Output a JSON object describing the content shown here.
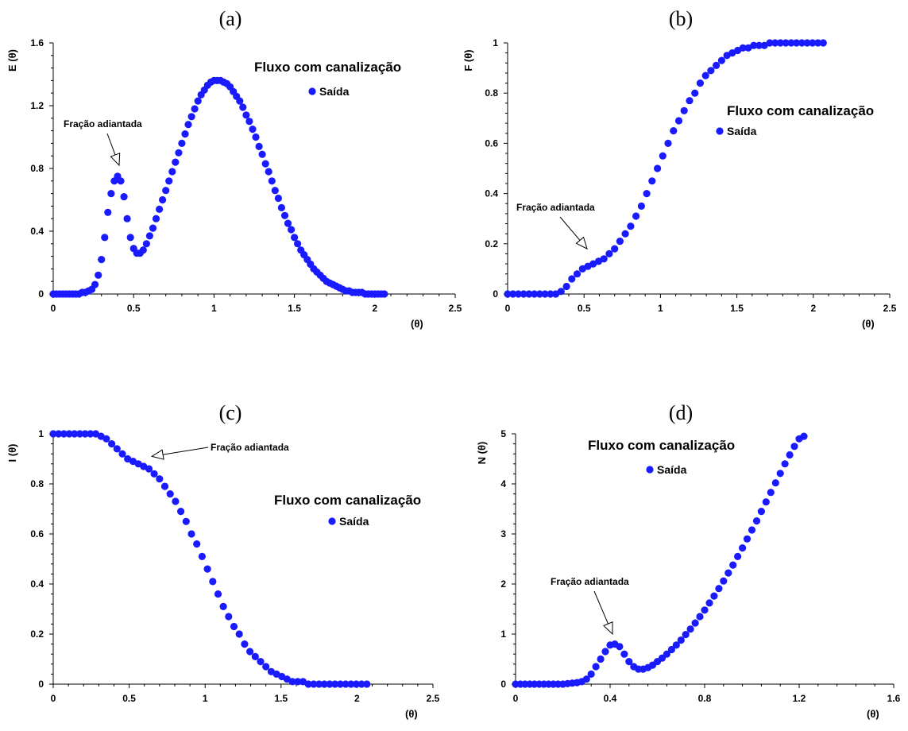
{
  "chart_data": [
    {
      "type": "scatter",
      "panel_label": "(a)",
      "ylabel": "E (θ)",
      "xlabel": "(θ)",
      "xlim": [
        0,
        2.5
      ],
      "ylim": [
        0,
        1.6
      ],
      "xticks": [
        0,
        0.5,
        1,
        1.5,
        2,
        2.5
      ],
      "yticks": [
        0,
        0.4,
        0.8,
        1.2,
        1.6
      ],
      "xtick_labels": [
        "0",
        "0.5",
        "1",
        "1.5",
        "2",
        "2.5"
      ],
      "ytick_labels": [
        "0",
        "0.4",
        "0.8",
        "1.2",
        "1.6"
      ],
      "title": "Fluxo com canalização",
      "legend": "Saída",
      "annotation": "Fração adiantada",
      "annotation_target": [
        0.41,
        0.82
      ],
      "color": "#1a1aff",
      "series": [
        {
          "name": "Saída",
          "x": [
            0.0,
            0.02,
            0.04,
            0.06,
            0.08,
            0.1,
            0.12,
            0.14,
            0.16,
            0.18,
            0.2,
            0.22,
            0.24,
            0.26,
            0.28,
            0.3,
            0.32,
            0.34,
            0.36,
            0.38,
            0.4,
            0.42,
            0.44,
            0.46,
            0.48,
            0.5,
            0.52,
            0.54,
            0.56,
            0.58,
            0.6,
            0.62,
            0.64,
            0.66,
            0.68,
            0.7,
            0.72,
            0.74,
            0.76,
            0.78,
            0.8,
            0.82,
            0.84,
            0.86,
            0.88,
            0.9,
            0.92,
            0.94,
            0.96,
            0.98,
            1.0,
            1.02,
            1.04,
            1.06,
            1.08,
            1.1,
            1.12,
            1.14,
            1.16,
            1.18,
            1.2,
            1.22,
            1.24,
            1.26,
            1.28,
            1.3,
            1.32,
            1.34,
            1.36,
            1.38,
            1.4,
            1.42,
            1.44,
            1.46,
            1.48,
            1.5,
            1.52,
            1.54,
            1.56,
            1.58,
            1.6,
            1.62,
            1.64,
            1.66,
            1.68,
            1.7,
            1.72,
            1.74,
            1.76,
            1.78,
            1.8,
            1.82,
            1.84,
            1.86,
            1.88,
            1.9,
            1.92,
            1.94,
            1.96,
            1.98,
            2.0,
            2.02,
            2.04,
            2.06
          ],
          "y": [
            0.0,
            0.0,
            0.0,
            0.0,
            0.0,
            0.0,
            0.0,
            0.0,
            0.0,
            0.01,
            0.01,
            0.02,
            0.03,
            0.06,
            0.12,
            0.22,
            0.36,
            0.52,
            0.64,
            0.72,
            0.75,
            0.72,
            0.62,
            0.48,
            0.36,
            0.29,
            0.26,
            0.26,
            0.28,
            0.32,
            0.37,
            0.42,
            0.48,
            0.54,
            0.6,
            0.66,
            0.72,
            0.78,
            0.84,
            0.9,
            0.96,
            1.02,
            1.08,
            1.13,
            1.18,
            1.23,
            1.27,
            1.3,
            1.33,
            1.35,
            1.36,
            1.36,
            1.36,
            1.35,
            1.34,
            1.32,
            1.29,
            1.26,
            1.23,
            1.19,
            1.14,
            1.1,
            1.05,
            1.0,
            0.94,
            0.89,
            0.83,
            0.78,
            0.72,
            0.66,
            0.61,
            0.55,
            0.5,
            0.45,
            0.41,
            0.36,
            0.32,
            0.28,
            0.25,
            0.22,
            0.19,
            0.16,
            0.14,
            0.12,
            0.1,
            0.08,
            0.07,
            0.06,
            0.05,
            0.04,
            0.03,
            0.02,
            0.02,
            0.01,
            0.01,
            0.01,
            0.01,
            0.0,
            0.0,
            0.0,
            0.0,
            0.0,
            0.0,
            0.0
          ]
        }
      ]
    },
    {
      "type": "scatter",
      "panel_label": "(b)",
      "ylabel": "F (θ)",
      "xlabel": "(θ)",
      "xlim": [
        0,
        2.5
      ],
      "ylim": [
        0,
        1
      ],
      "xticks": [
        0,
        0.5,
        1,
        1.5,
        2,
        2.5
      ],
      "yticks": [
        0,
        0.2,
        0.4,
        0.6,
        0.8,
        1
      ],
      "xtick_labels": [
        "0",
        "0.5",
        "1",
        "1.5",
        "2",
        "2.5"
      ],
      "ytick_labels": [
        "0",
        "0.2",
        "0.4",
        "0.6",
        "0.8",
        "1"
      ],
      "title": "Fluxo com canalização",
      "legend": "Saída",
      "annotation": "Fração adiantada",
      "annotation_target": [
        0.52,
        0.18
      ],
      "color": "#1a1aff",
      "series": [
        {
          "name": "Saída",
          "x": [
            0.0,
            0.035,
            0.07,
            0.105,
            0.14,
            0.175,
            0.21,
            0.245,
            0.28,
            0.315,
            0.35,
            0.385,
            0.42,
            0.455,
            0.49,
            0.525,
            0.56,
            0.595,
            0.63,
            0.665,
            0.7,
            0.735,
            0.77,
            0.805,
            0.84,
            0.875,
            0.91,
            0.945,
            0.98,
            1.015,
            1.05,
            1.085,
            1.12,
            1.155,
            1.19,
            1.225,
            1.26,
            1.295,
            1.33,
            1.365,
            1.4,
            1.435,
            1.47,
            1.505,
            1.54,
            1.575,
            1.61,
            1.645,
            1.68,
            1.715,
            1.75,
            1.785,
            1.82,
            1.855,
            1.89,
            1.925,
            1.96,
            1.995,
            2.03,
            2.065
          ],
          "y": [
            0.0,
            0.0,
            0.0,
            0.0,
            0.0,
            0.0,
            0.0,
            0.0,
            0.0,
            0.0,
            0.01,
            0.03,
            0.06,
            0.08,
            0.1,
            0.11,
            0.12,
            0.13,
            0.14,
            0.16,
            0.18,
            0.21,
            0.24,
            0.27,
            0.31,
            0.35,
            0.4,
            0.45,
            0.5,
            0.55,
            0.6,
            0.65,
            0.69,
            0.73,
            0.77,
            0.8,
            0.84,
            0.87,
            0.89,
            0.91,
            0.93,
            0.95,
            0.96,
            0.97,
            0.98,
            0.98,
            0.99,
            0.99,
            0.99,
            1.0,
            1.0,
            1.0,
            1.0,
            1.0,
            1.0,
            1.0,
            1.0,
            1.0,
            1.0,
            1.0
          ]
        }
      ]
    },
    {
      "type": "scatter",
      "panel_label": "(c)",
      "ylabel": "I (θ)",
      "xlabel": "(θ)",
      "xlim": [
        0,
        2.5
      ],
      "ylim": [
        0,
        1
      ],
      "xticks": [
        0,
        0.5,
        1,
        1.5,
        2,
        2.5
      ],
      "yticks": [
        0,
        0.2,
        0.4,
        0.6,
        0.8,
        1
      ],
      "xtick_labels": [
        "0",
        "0.5",
        "1",
        "1.5",
        "2",
        "2.5"
      ],
      "ytick_labels": [
        "0",
        "0.2",
        "0.4",
        "0.6",
        "0.8",
        "1"
      ],
      "title": "Fluxo com canalização",
      "legend": "Saída",
      "annotation": "Fração adiantada",
      "annotation_target": [
        0.65,
        0.91
      ],
      "color": "#1a1aff",
      "series": [
        {
          "name": "Saída",
          "x": [
            0.0,
            0.035,
            0.07,
            0.105,
            0.14,
            0.175,
            0.21,
            0.245,
            0.28,
            0.315,
            0.35,
            0.385,
            0.42,
            0.455,
            0.49,
            0.525,
            0.56,
            0.595,
            0.63,
            0.665,
            0.7,
            0.735,
            0.77,
            0.805,
            0.84,
            0.875,
            0.91,
            0.945,
            0.98,
            1.015,
            1.05,
            1.085,
            1.12,
            1.155,
            1.19,
            1.225,
            1.26,
            1.295,
            1.33,
            1.365,
            1.4,
            1.435,
            1.47,
            1.505,
            1.54,
            1.575,
            1.61,
            1.645,
            1.68,
            1.715,
            1.75,
            1.785,
            1.82,
            1.855,
            1.89,
            1.925,
            1.96,
            1.995,
            2.03,
            2.065
          ],
          "y": [
            1.0,
            1.0,
            1.0,
            1.0,
            1.0,
            1.0,
            1.0,
            1.0,
            1.0,
            0.99,
            0.98,
            0.96,
            0.94,
            0.92,
            0.9,
            0.89,
            0.88,
            0.87,
            0.86,
            0.84,
            0.82,
            0.79,
            0.76,
            0.73,
            0.69,
            0.65,
            0.6,
            0.56,
            0.51,
            0.46,
            0.41,
            0.36,
            0.31,
            0.27,
            0.23,
            0.2,
            0.16,
            0.13,
            0.11,
            0.09,
            0.07,
            0.05,
            0.04,
            0.03,
            0.02,
            0.01,
            0.01,
            0.01,
            0.0,
            0.0,
            0.0,
            0.0,
            0.0,
            0.0,
            0.0,
            0.0,
            0.0,
            0.0,
            0.0,
            0.0
          ]
        }
      ]
    },
    {
      "type": "scatter",
      "panel_label": "(d)",
      "ylabel": "N (θ)",
      "xlabel": "(θ)",
      "xlim": [
        0,
        1.6
      ],
      "ylim": [
        0,
        5
      ],
      "xticks": [
        0,
        0.4,
        0.8,
        1.2,
        1.6
      ],
      "yticks": [
        0,
        1,
        2,
        3,
        4,
        5
      ],
      "xtick_labels": [
        "0",
        "0.4",
        "0.8",
        "1.2",
        "1.6"
      ],
      "ytick_labels": [
        "0",
        "1",
        "2",
        "3",
        "4",
        "5"
      ],
      "title": "Fluxo com canalização",
      "legend": "Saída",
      "annotation": "Fração adiantada",
      "annotation_target": [
        0.41,
        1.0
      ],
      "color": "#1a1aff",
      "series": [
        {
          "name": "Saída",
          "x": [
            0.0,
            0.02,
            0.04,
            0.06,
            0.08,
            0.1,
            0.12,
            0.14,
            0.16,
            0.18,
            0.2,
            0.22,
            0.24,
            0.26,
            0.28,
            0.3,
            0.32,
            0.34,
            0.36,
            0.38,
            0.4,
            0.42,
            0.44,
            0.46,
            0.48,
            0.5,
            0.52,
            0.54,
            0.56,
            0.58,
            0.6,
            0.62,
            0.64,
            0.66,
            0.68,
            0.7,
            0.72,
            0.74,
            0.76,
            0.78,
            0.8,
            0.82,
            0.84,
            0.86,
            0.88,
            0.9,
            0.92,
            0.94,
            0.96,
            0.98,
            1.0,
            1.02,
            1.04,
            1.06,
            1.08,
            1.1,
            1.12,
            1.14,
            1.16,
            1.18,
            1.2,
            1.22
          ],
          "y": [
            0.0,
            0.0,
            0.0,
            0.0,
            0.0,
            0.0,
            0.0,
            0.0,
            0.0,
            0.0,
            0.0,
            0.01,
            0.02,
            0.03,
            0.05,
            0.1,
            0.2,
            0.35,
            0.5,
            0.65,
            0.78,
            0.8,
            0.75,
            0.6,
            0.45,
            0.35,
            0.3,
            0.3,
            0.33,
            0.38,
            0.45,
            0.52,
            0.6,
            0.69,
            0.78,
            0.88,
            0.99,
            1.1,
            1.22,
            1.35,
            1.48,
            1.62,
            1.76,
            1.91,
            2.06,
            2.22,
            2.38,
            2.55,
            2.72,
            2.9,
            3.08,
            3.26,
            3.45,
            3.64,
            3.83,
            4.02,
            4.21,
            4.4,
            4.58,
            4.75,
            4.9,
            4.95
          ]
        }
      ]
    }
  ]
}
